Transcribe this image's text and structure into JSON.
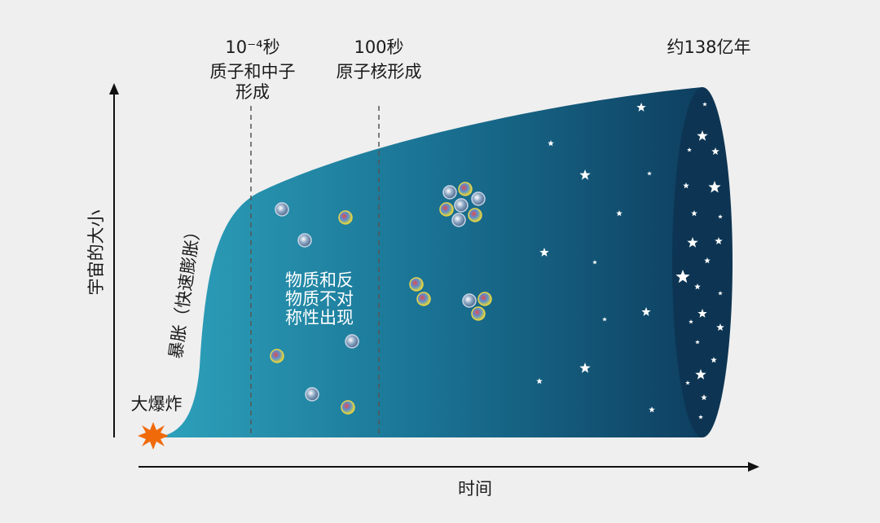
{
  "axes": {
    "y_label": "宇宙的大小",
    "x_label": "时间"
  },
  "events": [
    {
      "time": "10⁻⁴秒",
      "lines": [
        "质子和中子",
        "形成"
      ]
    },
    {
      "time": "100秒",
      "lines": [
        "原子核形成"
      ]
    },
    {
      "time": "约138亿年"
    }
  ],
  "big_bang": "大爆炸",
  "inflation": "暴胀（快速膨胀）",
  "asymmetry": [
    "物质和反",
    "物质不对",
    "称性出现"
  ]
}
